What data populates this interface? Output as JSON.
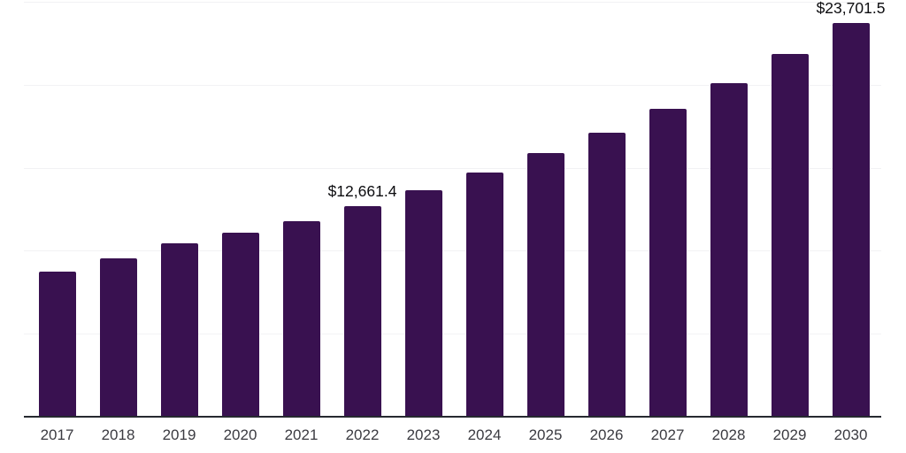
{
  "chart": {
    "background_color": "#ffffff",
    "bar_color": "#391150",
    "axis_line_color": "#262930",
    "gridline_color": "#f2f2f4",
    "tick_label_color": "#3b3b41",
    "data_label_color": "#0c0c0f"
  },
  "chart_data": {
    "type": "bar",
    "title": "",
    "xlabel": "",
    "ylabel": "",
    "categories": [
      "2017",
      "2018",
      "2019",
      "2020",
      "2021",
      "2022",
      "2023",
      "2024",
      "2025",
      "2026",
      "2027",
      "2028",
      "2029",
      "2030"
    ],
    "values": [
      8750,
      9550,
      10450,
      11100,
      11780,
      12661.4,
      13650,
      14700,
      15900,
      17100,
      18550,
      20100,
      21850,
      23701.5
    ],
    "data_labels": {
      "2022": "$12,661.4",
      "2030": "$23,701.5"
    },
    "ylim": [
      0,
      25000
    ],
    "gridline_interval": 5000,
    "grid": true,
    "legend": false,
    "axis_tick_labels_shown": "x-only"
  }
}
